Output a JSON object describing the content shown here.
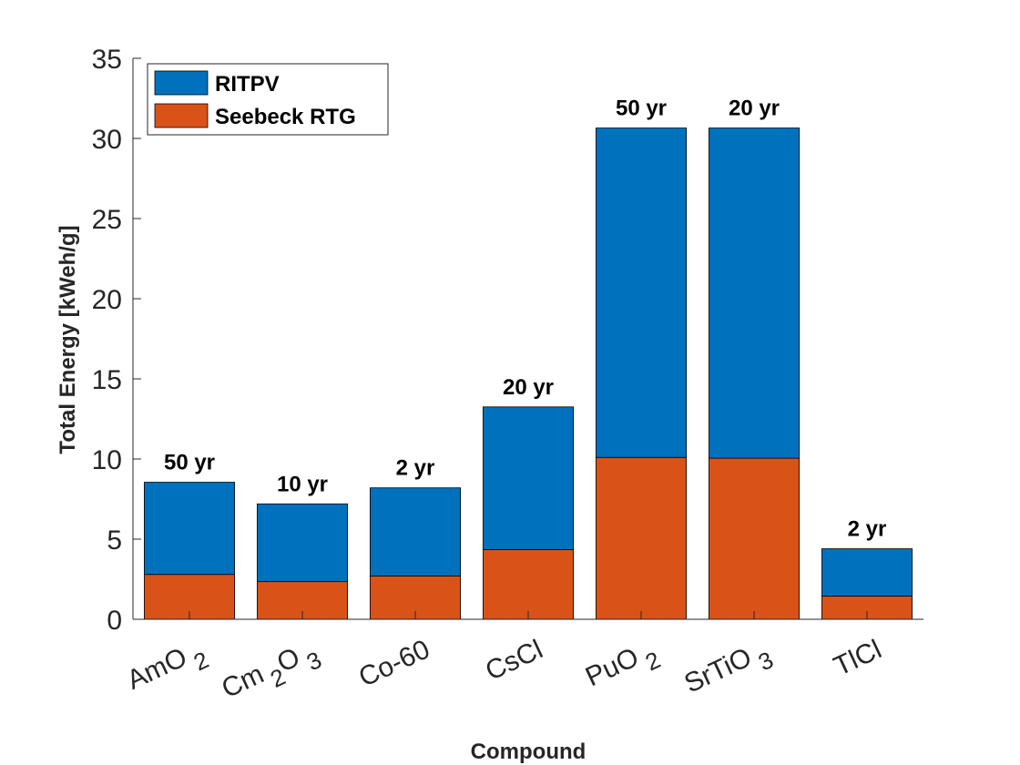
{
  "chart_data": {
    "type": "bar",
    "stacked": true,
    "categories": [
      {
        "base": "AmO",
        "sub": "2",
        "label": "AmO2"
      },
      {
        "base": "Cm",
        "sub": "2",
        "base2": "O",
        "sub2": "3",
        "label": "Cm2O3"
      },
      {
        "base": "Co-60",
        "label": "Co-60"
      },
      {
        "base": "CsCl",
        "label": "CsCl"
      },
      {
        "base": "PuO",
        "sub": "2",
        "label": "PuO2"
      },
      {
        "base": "SrTiO",
        "sub": "3",
        "label": "SrTiO3"
      },
      {
        "base": "TlCl",
        "label": "TlCl"
      }
    ],
    "series": [
      {
        "name": "Seebeck RTG",
        "color": "#D95319",
        "values": [
          2.8,
          2.35,
          2.7,
          4.35,
          10.1,
          10.05,
          1.45
        ]
      },
      {
        "name": "RITPV",
        "color": "#0072BD",
        "values": [
          5.75,
          4.85,
          5.5,
          8.9,
          20.55,
          20.6,
          2.95
        ]
      }
    ],
    "totals": [
      8.55,
      7.2,
      8.2,
      13.25,
      30.65,
      30.65,
      4.4
    ],
    "bar_labels": [
      "50 yr",
      "10 yr",
      "2 yr",
      "20 yr",
      "50 yr",
      "20 yr",
      "2 yr"
    ],
    "xlabel": "Compound",
    "ylabel": "Total Energy [kWeh/g]",
    "ylim": [
      0,
      35
    ],
    "yticks": [
      0,
      5,
      10,
      15,
      20,
      25,
      30,
      35
    ],
    "legend": {
      "placement": "top-left",
      "entries": [
        "RITPV",
        "Seebeck RTG"
      ]
    },
    "grid": false
  }
}
